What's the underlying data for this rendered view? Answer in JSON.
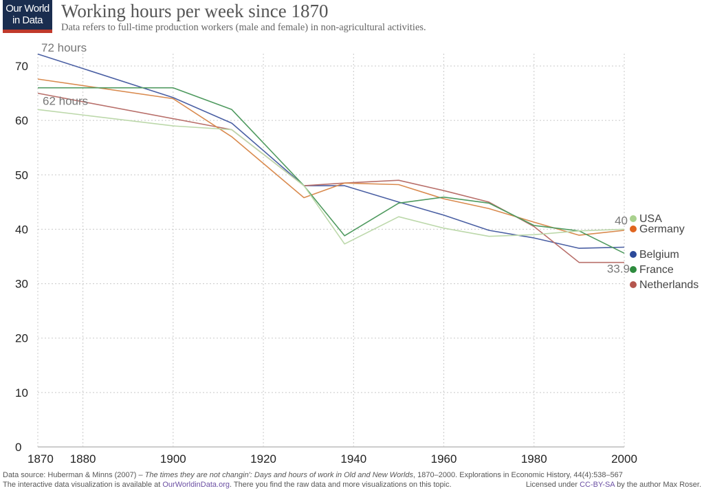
{
  "logo": {
    "line1": "Our World",
    "line2": "in Data"
  },
  "chart_data": {
    "type": "line",
    "title": "Working hours per week since 1870",
    "subtitle": "Data refers to full-time production workers (male and female) in non-agricultural activities.",
    "xlabel": "",
    "ylabel": "",
    "xlim": [
      1870,
      2000
    ],
    "ylim": [
      0,
      72
    ],
    "x_ticks": [
      1870,
      1880,
      1900,
      1920,
      1940,
      1960,
      1980,
      2000
    ],
    "y_ticks": [
      0,
      10,
      20,
      30,
      40,
      50,
      60,
      70
    ],
    "grid": true,
    "annotations": [
      {
        "text": "72 hours",
        "x": 1870,
        "y": 72.3
      },
      {
        "text": "62 hours",
        "x": 1870,
        "y": 62.1
      },
      {
        "text": "40",
        "x": 2000,
        "y": 40
      },
      {
        "text": "33.9",
        "x": 2000,
        "y": 33.9
      }
    ],
    "series": [
      {
        "name": "Belgium",
        "color": "#4a5fa3",
        "legend_color": "#2c4a9a",
        "x": [
          1870,
          1900,
          1913,
          1929,
          1938,
          1950,
          1960,
          1970,
          1980,
          1990,
          2000
        ],
        "y": [
          72.2,
          64.2,
          59.5,
          48.0,
          48.0,
          45.0,
          42.6,
          39.8,
          38.4,
          36.5,
          36.7
        ]
      },
      {
        "name": "Netherlands",
        "color": "#b86f6a",
        "legend_color": "#b5564e",
        "x": [
          1870,
          1913,
          1929,
          1938,
          1950,
          1960,
          1970,
          1980,
          1990,
          2000
        ],
        "y": [
          65.0,
          58.3,
          48.0,
          48.5,
          49.0,
          47.1,
          45.0,
          40.5,
          33.9,
          33.9
        ]
      },
      {
        "name": "Germany",
        "color": "#d98a4e",
        "legend_color": "#e0651f",
        "x": [
          1870,
          1900,
          1913,
          1929,
          1938,
          1950,
          1960,
          1970,
          1980,
          1990,
          2000
        ],
        "y": [
          67.6,
          64.0,
          57.0,
          45.8,
          48.5,
          48.2,
          45.6,
          43.8,
          41.3,
          38.9,
          39.8
        ]
      },
      {
        "name": "France",
        "color": "#4f9a5f",
        "legend_color": "#2e8b3e",
        "x": [
          1870,
          1900,
          1913,
          1929,
          1938,
          1950,
          1960,
          1970,
          1980,
          1990,
          2000
        ],
        "y": [
          66.0,
          66.0,
          62.0,
          48.0,
          38.8,
          44.8,
          45.9,
          44.8,
          40.7,
          39.7,
          35.6
        ]
      },
      {
        "name": "USA",
        "color": "#bcd8aa",
        "legend_color": "#a9d18e",
        "x": [
          1870,
          1900,
          1913,
          1929,
          1938,
          1950,
          1960,
          1970,
          1980,
          1990,
          2000
        ],
        "y": [
          62.0,
          59.0,
          58.3,
          48.0,
          37.3,
          42.3,
          40.2,
          38.7,
          39.0,
          39.7,
          40.0
        ]
      }
    ],
    "legend": [
      {
        "name": "USA",
        "color": "#a9d18e"
      },
      {
        "name": "Germany",
        "color": "#e0651f"
      },
      {
        "name": "Belgium",
        "color": "#2c4a9a"
      },
      {
        "name": "France",
        "color": "#2e8b3e"
      },
      {
        "name": "Netherlands",
        "color": "#b5564e"
      }
    ]
  },
  "footer": {
    "source_prefix": "Data source: Huberman & Minns (2007) – ",
    "source_title": "The times they are not changin': Days and hours of work in Old and New Worlds",
    "source_suffix": ", 1870–2000. Explorations in Economic History, 44(4):538–567",
    "interactive_prefix": "The interactive data visualization is available at ",
    "interactive_link": "OurWorldinData.org",
    "interactive_suffix": ". There you find the raw data and more visualizations on this topic.",
    "license_prefix": "Licensed under ",
    "license_link": "CC-BY-SA",
    "license_suffix": " by the author Max Roser."
  }
}
